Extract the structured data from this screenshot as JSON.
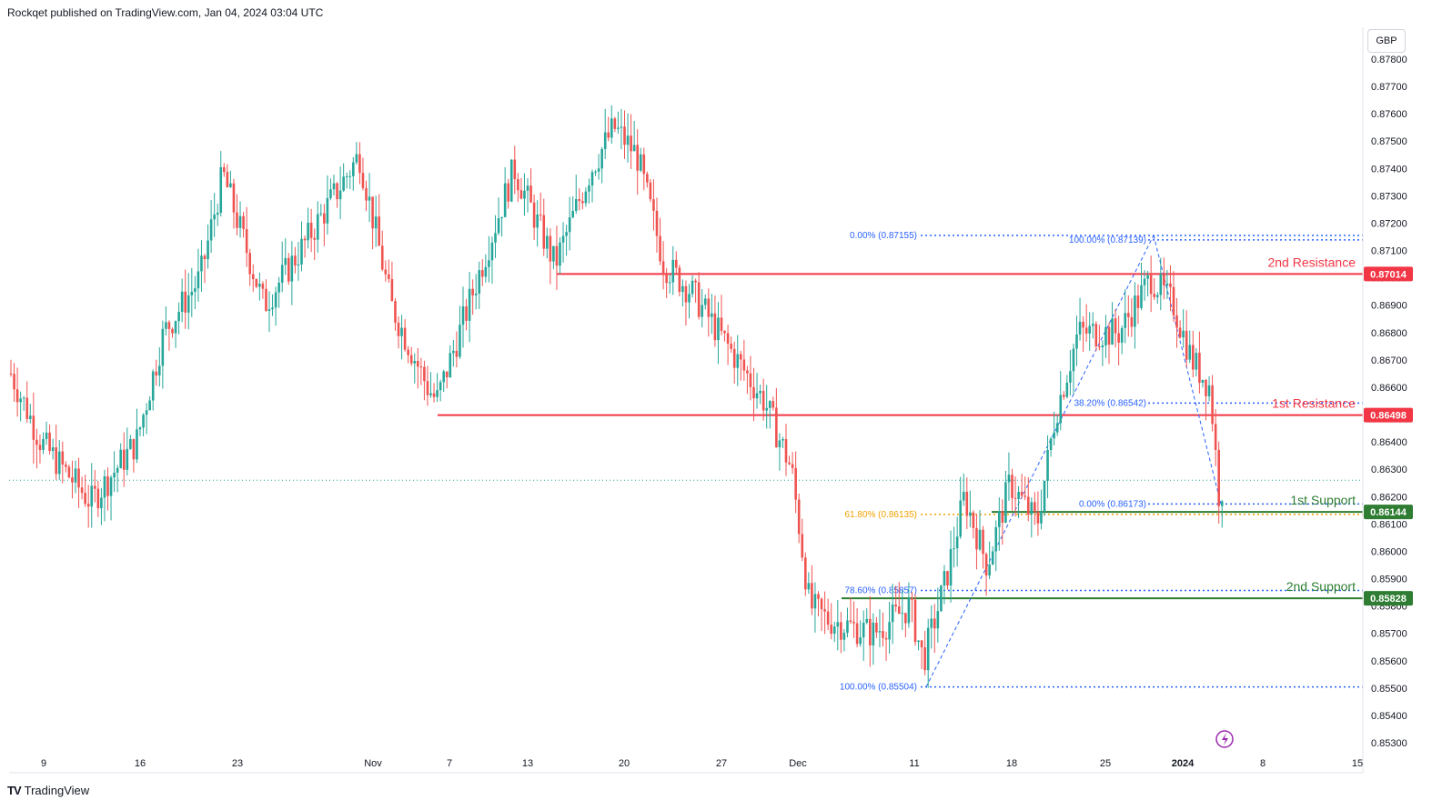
{
  "header": {
    "text": "Rockqet published on TradingView.com, Jan 04, 2024 03:04 UTC"
  },
  "footer": {
    "logo": "TV",
    "brand": "TradingView"
  },
  "currency": "GBP",
  "colors": {
    "up": "#26a69a",
    "down": "#ef5350",
    "resistance": "#f23645",
    "support": "#2e7d32",
    "fib": "#2962ff",
    "fib_golden": "#f0a000"
  },
  "chart_data": {
    "type": "candlestick",
    "title": "",
    "ylim": [
      0.8525,
      0.8785
    ],
    "y_ticks": [
      "0.87800",
      "0.87700",
      "0.87600",
      "0.87500",
      "0.87400",
      "0.87300",
      "0.87200",
      "0.87100",
      "0.87000",
      "0.86900",
      "0.86800",
      "0.86700",
      "0.86600",
      "0.86500",
      "0.86400",
      "0.86300",
      "0.86200",
      "0.86100",
      "0.86000",
      "0.85900",
      "0.85800",
      "0.85700",
      "0.85600",
      "0.85500",
      "0.85400",
      "0.85300"
    ],
    "x_ticks": [
      "9",
      "16",
      "23",
      "Nov",
      "7",
      "13",
      "20",
      "27",
      "Dec",
      "11",
      "18",
      "25",
      "2024",
      "8",
      "15"
    ],
    "key_points": [
      {
        "label": "Oct 9",
        "value": 0.8665
      },
      {
        "label": "Oct 13 low",
        "value": 0.8618
      },
      {
        "label": "Oct 20",
        "value": 0.8738
      },
      {
        "label": "Oct 27",
        "value": 0.8745
      },
      {
        "label": "Nov 3 low",
        "value": 0.865
      },
      {
        "label": "Nov 17 high",
        "value": 0.8765
      },
      {
        "label": "Dec 1",
        "value": 0.862
      },
      {
        "label": "Dec 11 low",
        "value": 0.855
      },
      {
        "label": "Dec 28 high",
        "value": 0.8714
      },
      {
        "label": "Jan 4",
        "value": 0.8625
      }
    ],
    "last_price": 0.8626,
    "levels": [
      {
        "name": "2nd Resistance",
        "value": "0.87014",
        "kind": "resistance"
      },
      {
        "name": "1st Resistance",
        "value": "0.86498",
        "kind": "resistance"
      },
      {
        "name": "1st Support",
        "value": "0.86144",
        "kind": "support"
      },
      {
        "name": "2nd Support",
        "value": "0.85828",
        "kind": "support"
      }
    ],
    "fib_labels": [
      {
        "text": "0.00% (0.87155)",
        "value": 0.87155,
        "color": "fib"
      },
      {
        "text": "100.00% (0.87139)",
        "value": 0.87139,
        "color": "fib"
      },
      {
        "text": "38.20% (0.86542)",
        "value": 0.86542,
        "color": "fib"
      },
      {
        "text": "0.00% (0.86173)",
        "value": 0.86173,
        "color": "fib"
      },
      {
        "text": "61.80% (0.86135)",
        "value": 0.86135,
        "color": "fib_golden"
      },
      {
        "text": "78.60% (0.85857)",
        "value": 0.85857,
        "color": "fib"
      },
      {
        "text": "100.00% (0.85504)",
        "value": 0.85504,
        "color": "fib"
      }
    ]
  }
}
